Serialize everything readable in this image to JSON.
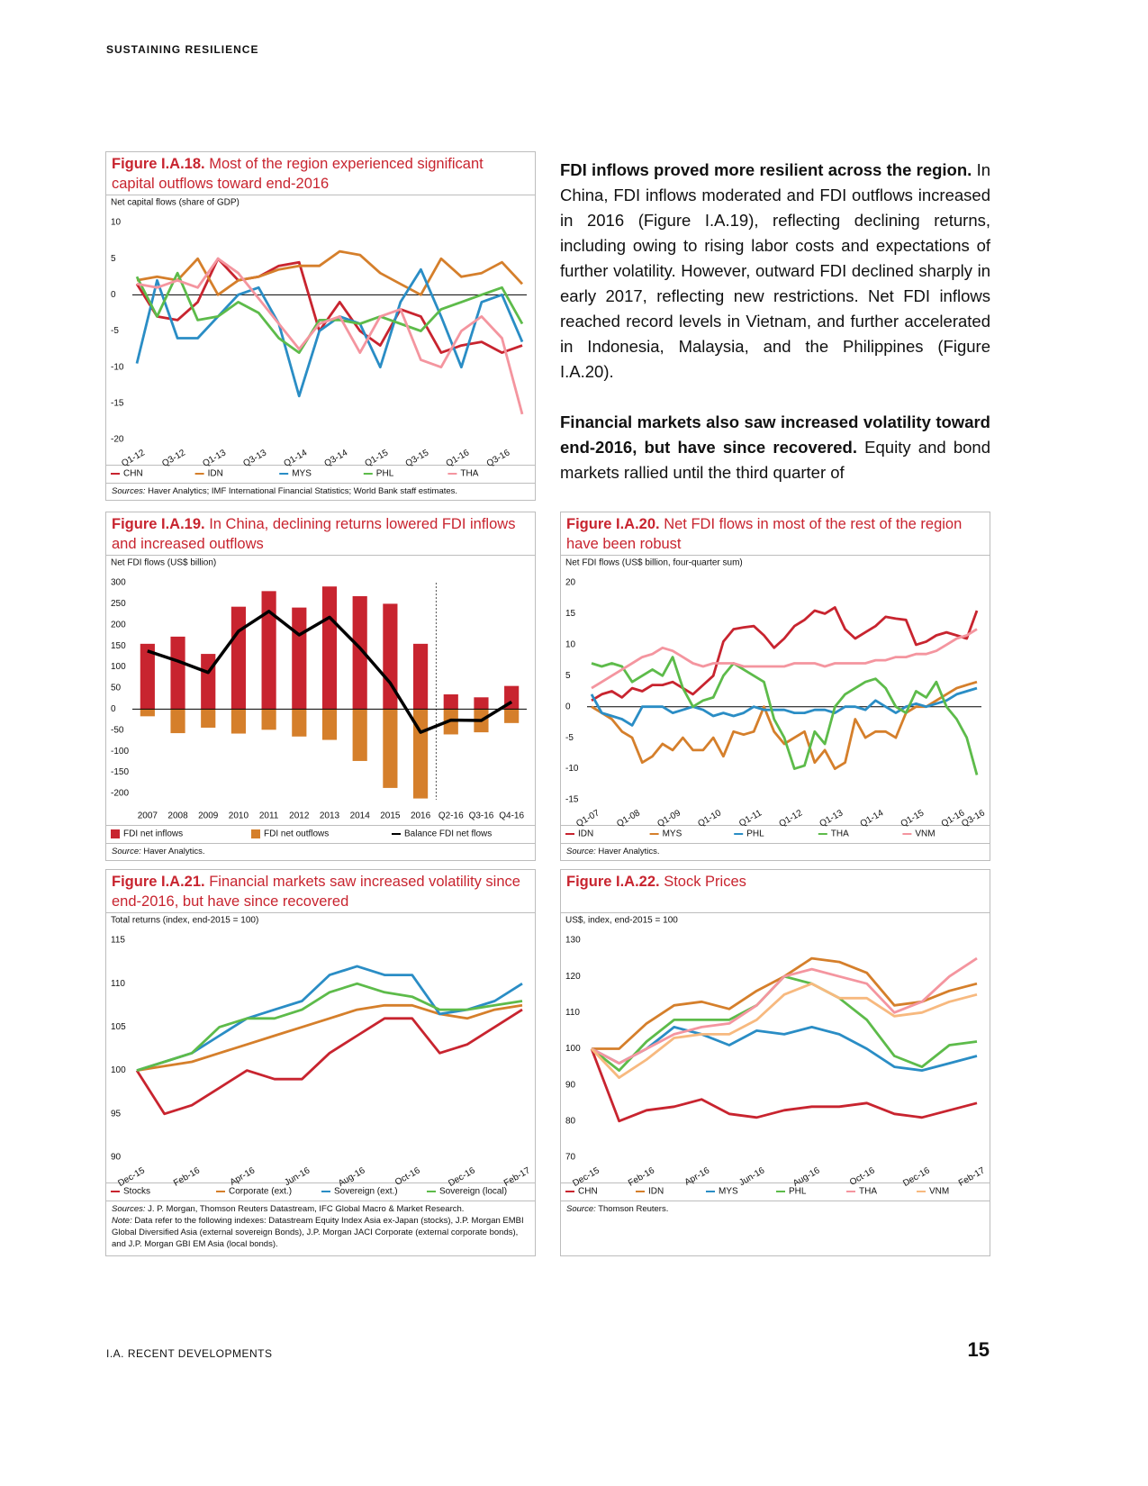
{
  "header": {
    "title": "SUSTAINING RESILIENCE"
  },
  "body": {
    "paragraphs": [
      {
        "lead": "FDI inflows proved more resilient across the region.",
        "text": "In China, FDI inflows moderated and FDI outflows increased in 2016 (Figure I.A.19), reflecting declining returns, including owing to rising labor costs and expectations of further volatility. However, outward FDI declined sharply in early 2017, reflecting new restrictions. Net FDI inflows reached record levels in Vietnam, and further accelerated in Indonesia, Malaysia, and the Philippines (Figure I.A.20)."
      },
      {
        "lead": "Financial markets also saw increased volatility toward end-2016, but have since recovered.",
        "text": "Equity and bond markets rallied until the third quarter of"
      }
    ]
  },
  "footer": {
    "section": "I.A. RECENT DEVELOPMENTS",
    "page": "15"
  },
  "chart_data": [
    {
      "type": "line",
      "number": "Figure I.A.18.",
      "title": "Most of the region experienced significant capital outflows toward end-2016",
      "subtitle": "Net capital flows (share of GDP)",
      "categories": [
        "Q1-12",
        null,
        "Q3-12",
        null,
        "Q1-13",
        null,
        "Q3-13",
        null,
        "Q1-14",
        null,
        "Q3-14",
        null,
        "Q1-15",
        null,
        "Q3-15",
        null,
        "Q1-16",
        null,
        "Q3-16",
        null
      ],
      "series": [
        {
          "name": "CHN",
          "color": "#c8242f",
          "values": [
            1.5,
            -3,
            -3.5,
            -1,
            5,
            2,
            2.5,
            4,
            4.5,
            -5,
            -1,
            -5,
            -7,
            -2,
            -3,
            -8,
            -7,
            -6.5,
            -8,
            -7
          ]
        },
        {
          "name": "IDN",
          "color": "#d57f2b",
          "values": [
            2,
            2.5,
            2,
            5,
            0,
            2,
            2.5,
            3.5,
            4,
            4,
            6,
            5.5,
            3,
            1.5,
            0,
            5,
            2.5,
            3,
            4.5,
            1.5
          ]
        },
        {
          "name": "MYS",
          "color": "#2a8dc5",
          "values": [
            -9.5,
            2,
            -6,
            -6,
            -3,
            0,
            1,
            -4,
            -14,
            -5,
            -3,
            -4,
            -10,
            -1,
            3.5,
            -3,
            -10,
            -1,
            0,
            -6.5
          ]
        },
        {
          "name": "PHL",
          "color": "#5dbb4a",
          "values": [
            2.5,
            -3,
            3,
            -3.5,
            -3,
            -1,
            -2.5,
            -6,
            -8,
            -3.5,
            -3.5,
            -4,
            -3,
            -4,
            -5,
            -2,
            -1,
            0,
            1,
            -4
          ]
        },
        {
          "name": "THA",
          "color": "#f4959f",
          "values": [
            1.5,
            1,
            2,
            1,
            5,
            3,
            -0.5,
            -4,
            -7.5,
            -4,
            -3,
            -8,
            -3,
            -2,
            -9,
            -10,
            -5,
            -3,
            -6,
            -16.5
          ]
        }
      ],
      "ylim": [
        -20,
        10
      ],
      "yticks": [
        -20,
        -15,
        -10,
        -5,
        0,
        5,
        10
      ],
      "zero_line": true,
      "x_labels_rotated": true,
      "source_label": "Sources:",
      "source": "Haver Analytics; IMF International Financial Statistics; World Bank staff estimates."
    },
    {
      "type": "bar",
      "number": "Figure I.A.19.",
      "title": "In China, declining returns lowered FDI inflows and increased outflows",
      "subtitle": "Net FDI flows (US$ billion)",
      "categories": [
        "2007",
        "2008",
        "2009",
        "2010",
        "2011",
        "2012",
        "2013",
        "2014",
        "2015",
        "2016",
        "Q2-16",
        "Q3-16",
        "Q4-16"
      ],
      "series": [
        {
          "name": "FDI net inflows",
          "color": "#c8242f",
          "values": [
            155,
            172,
            131,
            243,
            280,
            241,
            291,
            268,
            250,
            155,
            35,
            28,
            55
          ]
        },
        {
          "name": "FDI net outflows",
          "color": "#d57f2b",
          "values": [
            -17,
            -57,
            -44,
            -58,
            -49,
            -65,
            -73,
            -123,
            -187,
            -212,
            -60,
            -55,
            -33
          ]
        },
        {
          "name": "Balance FDI net flows",
          "color": "#000000",
          "type": "line",
          "values": [
            138,
            114,
            87,
            185,
            232,
            176,
            218,
            145,
            62,
            -55,
            -26,
            -27,
            17
          ]
        }
      ],
      "ylim": [
        -215,
        300
      ],
      "yticks": [
        -200,
        -150,
        -100,
        -50,
        0,
        50,
        100,
        150,
        200,
        250,
        300
      ],
      "zero_line": true,
      "x_labels_rotated": false,
      "source_label": "Source:",
      "source": "Haver Analytics."
    },
    {
      "type": "line",
      "number": "Figure I.A.20.",
      "title": "Net FDI flows in most of the rest of the region have been robust",
      "subtitle": "Net FDI flows (US$ billion, four-quarter sum)",
      "categories": [
        "Q1-07",
        null,
        null,
        null,
        "Q1-08",
        null,
        null,
        null,
        "Q1-09",
        null,
        null,
        null,
        "Q1-10",
        null,
        null,
        null,
        "Q1-11",
        null,
        null,
        null,
        "Q1-12",
        null,
        null,
        null,
        "Q1-13",
        null,
        null,
        null,
        "Q1-14",
        null,
        null,
        null,
        "Q1-15",
        null,
        null,
        null,
        "Q1-16",
        null,
        "Q3-16"
      ],
      "series": [
        {
          "name": "IDN",
          "color": "#c8242f",
          "values": [
            1,
            2,
            2.5,
            1.5,
            3,
            2.5,
            3.5,
            3.5,
            4,
            3,
            2,
            3.5,
            5,
            10.5,
            12.5,
            12.8,
            13,
            11.5,
            9.5,
            11,
            13,
            14,
            15.5,
            15,
            16,
            12.5,
            11,
            12,
            13,
            14.5,
            14.2,
            14,
            10,
            10.5,
            11.5,
            12,
            11.5,
            11,
            15.5
          ]
        },
        {
          "name": "MYS",
          "color": "#d57f2b",
          "values": [
            0,
            -1,
            -2,
            -4,
            -5,
            -9,
            -8,
            -6,
            -7,
            -5,
            -7,
            -7,
            -5,
            -8,
            -4,
            -4.5,
            -4,
            0,
            -4,
            -6,
            -5,
            -4,
            -9,
            -7,
            -10,
            -9,
            -2,
            -5,
            -4,
            -4,
            -5,
            -1,
            0,
            0,
            1,
            2,
            3,
            3.5,
            4
          ]
        },
        {
          "name": "PHL",
          "color": "#2a8dc5",
          "values": [
            2,
            -1,
            -1.5,
            -2,
            -3,
            0,
            0,
            0,
            -1,
            -0.5,
            0,
            -0.5,
            -1.5,
            -1,
            -1.5,
            -1,
            0,
            -0.5,
            -0.5,
            -0.5,
            -1,
            -1,
            -0.5,
            -0.5,
            -1,
            0,
            0,
            -0.5,
            1,
            0,
            -1,
            0,
            0.5,
            0,
            0.5,
            1,
            2,
            2.5,
            3
          ]
        },
        {
          "name": "THA",
          "color": "#5dbb4a",
          "values": [
            7,
            6.5,
            7,
            6.5,
            4,
            5,
            6,
            5,
            8,
            3,
            0,
            1,
            1.5,
            5,
            7,
            6,
            5,
            4,
            -2,
            -5,
            -10,
            -9.5,
            -4,
            -6,
            0,
            2,
            3,
            4,
            4.5,
            3,
            0,
            -1,
            2.5,
            1.5,
            4,
            0,
            -2,
            -5,
            -11
          ]
        },
        {
          "name": "VNM",
          "color": "#f4959f",
          "values": [
            3,
            4,
            5,
            6,
            7,
            8,
            8.5,
            9.5,
            9,
            8,
            7,
            6.5,
            7,
            7,
            7,
            6.5,
            6.5,
            6.5,
            6.5,
            6.5,
            7,
            7,
            7,
            6.5,
            7,
            7,
            7,
            7,
            7.5,
            7.5,
            8,
            8,
            8.5,
            8.5,
            9,
            10,
            11,
            11.5,
            12.5
          ]
        }
      ],
      "ylim": [
        -15,
        20
      ],
      "yticks": [
        -15,
        -10,
        -5,
        0,
        5,
        10,
        15,
        20
      ],
      "zero_line": true,
      "x_labels_rotated": true,
      "source_label": "Source:",
      "source": "Haver Analytics."
    },
    {
      "type": "line",
      "number": "Figure I.A.21.",
      "title": "Financial markets saw increased volatility since end-2016, but have since recovered",
      "subtitle": "Total returns (index, end-2015 = 100)",
      "categories": [
        "Dec-15",
        null,
        "Feb-16",
        null,
        "Apr-16",
        null,
        "Jun-16",
        null,
        "Aug-16",
        null,
        "Oct-16",
        null,
        "Dec-16",
        null,
        "Feb-17"
      ],
      "series": [
        {
          "name": "Stocks",
          "color": "#c8242f",
          "values": [
            100,
            95,
            96,
            98,
            100,
            99,
            99,
            102,
            104,
            106,
            106,
            102,
            103,
            105,
            107
          ]
        },
        {
          "name": "Corporate (ext.)",
          "color": "#d57f2b",
          "values": [
            100,
            100.5,
            101,
            102,
            103,
            104,
            105,
            106,
            107,
            107.5,
            107.5,
            106.5,
            106,
            107,
            107.5
          ]
        },
        {
          "name": "Sovereign (ext.)",
          "color": "#2a8dc5",
          "values": [
            100,
            101,
            102,
            104,
            106,
            107,
            108,
            111,
            112,
            111,
            111,
            106.5,
            107,
            108,
            110
          ]
        },
        {
          "name": "Sovereign (local)",
          "color": "#5dbb4a",
          "values": [
            100,
            101,
            102,
            105,
            106,
            106,
            107,
            109,
            110,
            109,
            108.5,
            107,
            107,
            107.5,
            108
          ]
        }
      ],
      "ylim": [
        90,
        115
      ],
      "yticks": [
        90,
        95,
        100,
        105,
        110,
        115
      ],
      "zero_line": false,
      "x_labels_rotated": true,
      "source_label": "Sources:",
      "source": "J. P. Morgan, Thomson Reuters Datastream, IFC Global Macro & Market Research.",
      "note_label": "Note:",
      "note": "Data refer to the following indexes: Datastream Equity Index Asia ex-Japan (stocks), J.P. Morgan EMBI Global Diversified Asia (external sovereign Bonds), J.P. Morgan JACI Corporate (external corporate bonds), and J.P. Morgan GBI EM Asia (local bonds)."
    },
    {
      "type": "line",
      "number": "Figure I.A.22.",
      "title": "Stock Prices",
      "subtitle": "US$, index, end-2015 = 100",
      "categories": [
        "Dec-15",
        null,
        "Feb-16",
        null,
        "Apr-16",
        null,
        "Jun-16",
        null,
        "Aug-16",
        null,
        "Oct-16",
        null,
        "Dec-16",
        null,
        "Feb-17"
      ],
      "series": [
        {
          "name": "CHN",
          "color": "#c8242f",
          "values": [
            100,
            80,
            83,
            84,
            86,
            82,
            81,
            83,
            84,
            84,
            85,
            82,
            81,
            83,
            85
          ]
        },
        {
          "name": "IDN",
          "color": "#d57f2b",
          "values": [
            100,
            100,
            107,
            112,
            113,
            111,
            116,
            120,
            125,
            124,
            121,
            112,
            113,
            116,
            118
          ]
        },
        {
          "name": "MYS",
          "color": "#2a8dc5",
          "values": [
            100,
            96,
            100,
            106,
            104,
            101,
            105,
            104,
            106,
            104,
            100,
            95,
            94,
            96,
            98
          ]
        },
        {
          "name": "PHL",
          "color": "#5dbb4a",
          "values": [
            100,
            94,
            102,
            108,
            108,
            108,
            112,
            120,
            118,
            114,
            108,
            98,
            95,
            101,
            102
          ]
        },
        {
          "name": "THA",
          "color": "#f4959f",
          "values": [
            100,
            96,
            100,
            104,
            106,
            107,
            112,
            120,
            122,
            120,
            118,
            110,
            113,
            120,
            125
          ]
        },
        {
          "name": "VNM",
          "color": "#f7b97f",
          "values": [
            100,
            92,
            97,
            103,
            104,
            104,
            108,
            115,
            118,
            114,
            114,
            109,
            110,
            113,
            115
          ]
        }
      ],
      "ylim": [
        70,
        130
      ],
      "yticks": [
        70,
        80,
        90,
        100,
        110,
        120,
        130
      ],
      "zero_line": false,
      "x_labels_rotated": true,
      "source_label": "Source:",
      "source": "Thomson Reuters."
    }
  ]
}
